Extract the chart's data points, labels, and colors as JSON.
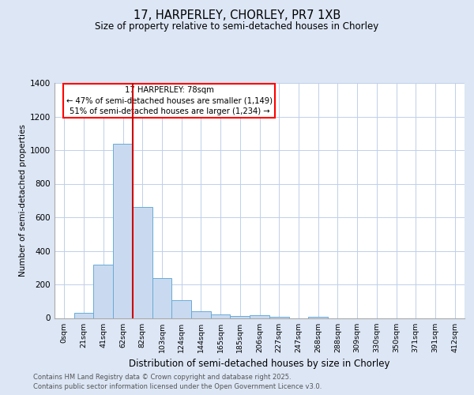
{
  "title_line1": "17, HARPERLEY, CHORLEY, PR7 1XB",
  "title_line2": "Size of property relative to semi-detached houses in Chorley",
  "xlabel": "Distribution of semi-detached houses by size in Chorley",
  "ylabel": "Number of semi-detached properties",
  "annotation_line1": "17 HARPERLEY: 78sqm",
  "annotation_line2": "← 47% of semi-detached houses are smaller (1,149)",
  "annotation_line3": "51% of semi-detached houses are larger (1,234) →",
  "footer_line1": "Contains HM Land Registry data © Crown copyright and database right 2025.",
  "footer_line2": "Contains public sector information licensed under the Open Government Licence v3.0.",
  "bar_labels": [
    "0sqm",
    "21sqm",
    "41sqm",
    "62sqm",
    "82sqm",
    "103sqm",
    "124sqm",
    "144sqm",
    "165sqm",
    "185sqm",
    "206sqm",
    "227sqm",
    "247sqm",
    "268sqm",
    "288sqm",
    "309sqm",
    "330sqm",
    "350sqm",
    "371sqm",
    "391sqm",
    "412sqm"
  ],
  "bar_values": [
    0,
    30,
    320,
    1040,
    660,
    240,
    105,
    40,
    20,
    10,
    15,
    5,
    0,
    5,
    0,
    0,
    0,
    0,
    0,
    0,
    0
  ],
  "bar_color": "#c9daf0",
  "bar_edge_color": "#6aaad5",
  "red_line_x": 3.5,
  "marker_color": "#cc0000",
  "ylim": [
    0,
    1400
  ],
  "yticks": [
    0,
    200,
    400,
    600,
    800,
    1000,
    1200,
    1400
  ],
  "background_color": "#dce6f5",
  "plot_bg_color": "#ffffff",
  "grid_color": "#c0cfe8"
}
